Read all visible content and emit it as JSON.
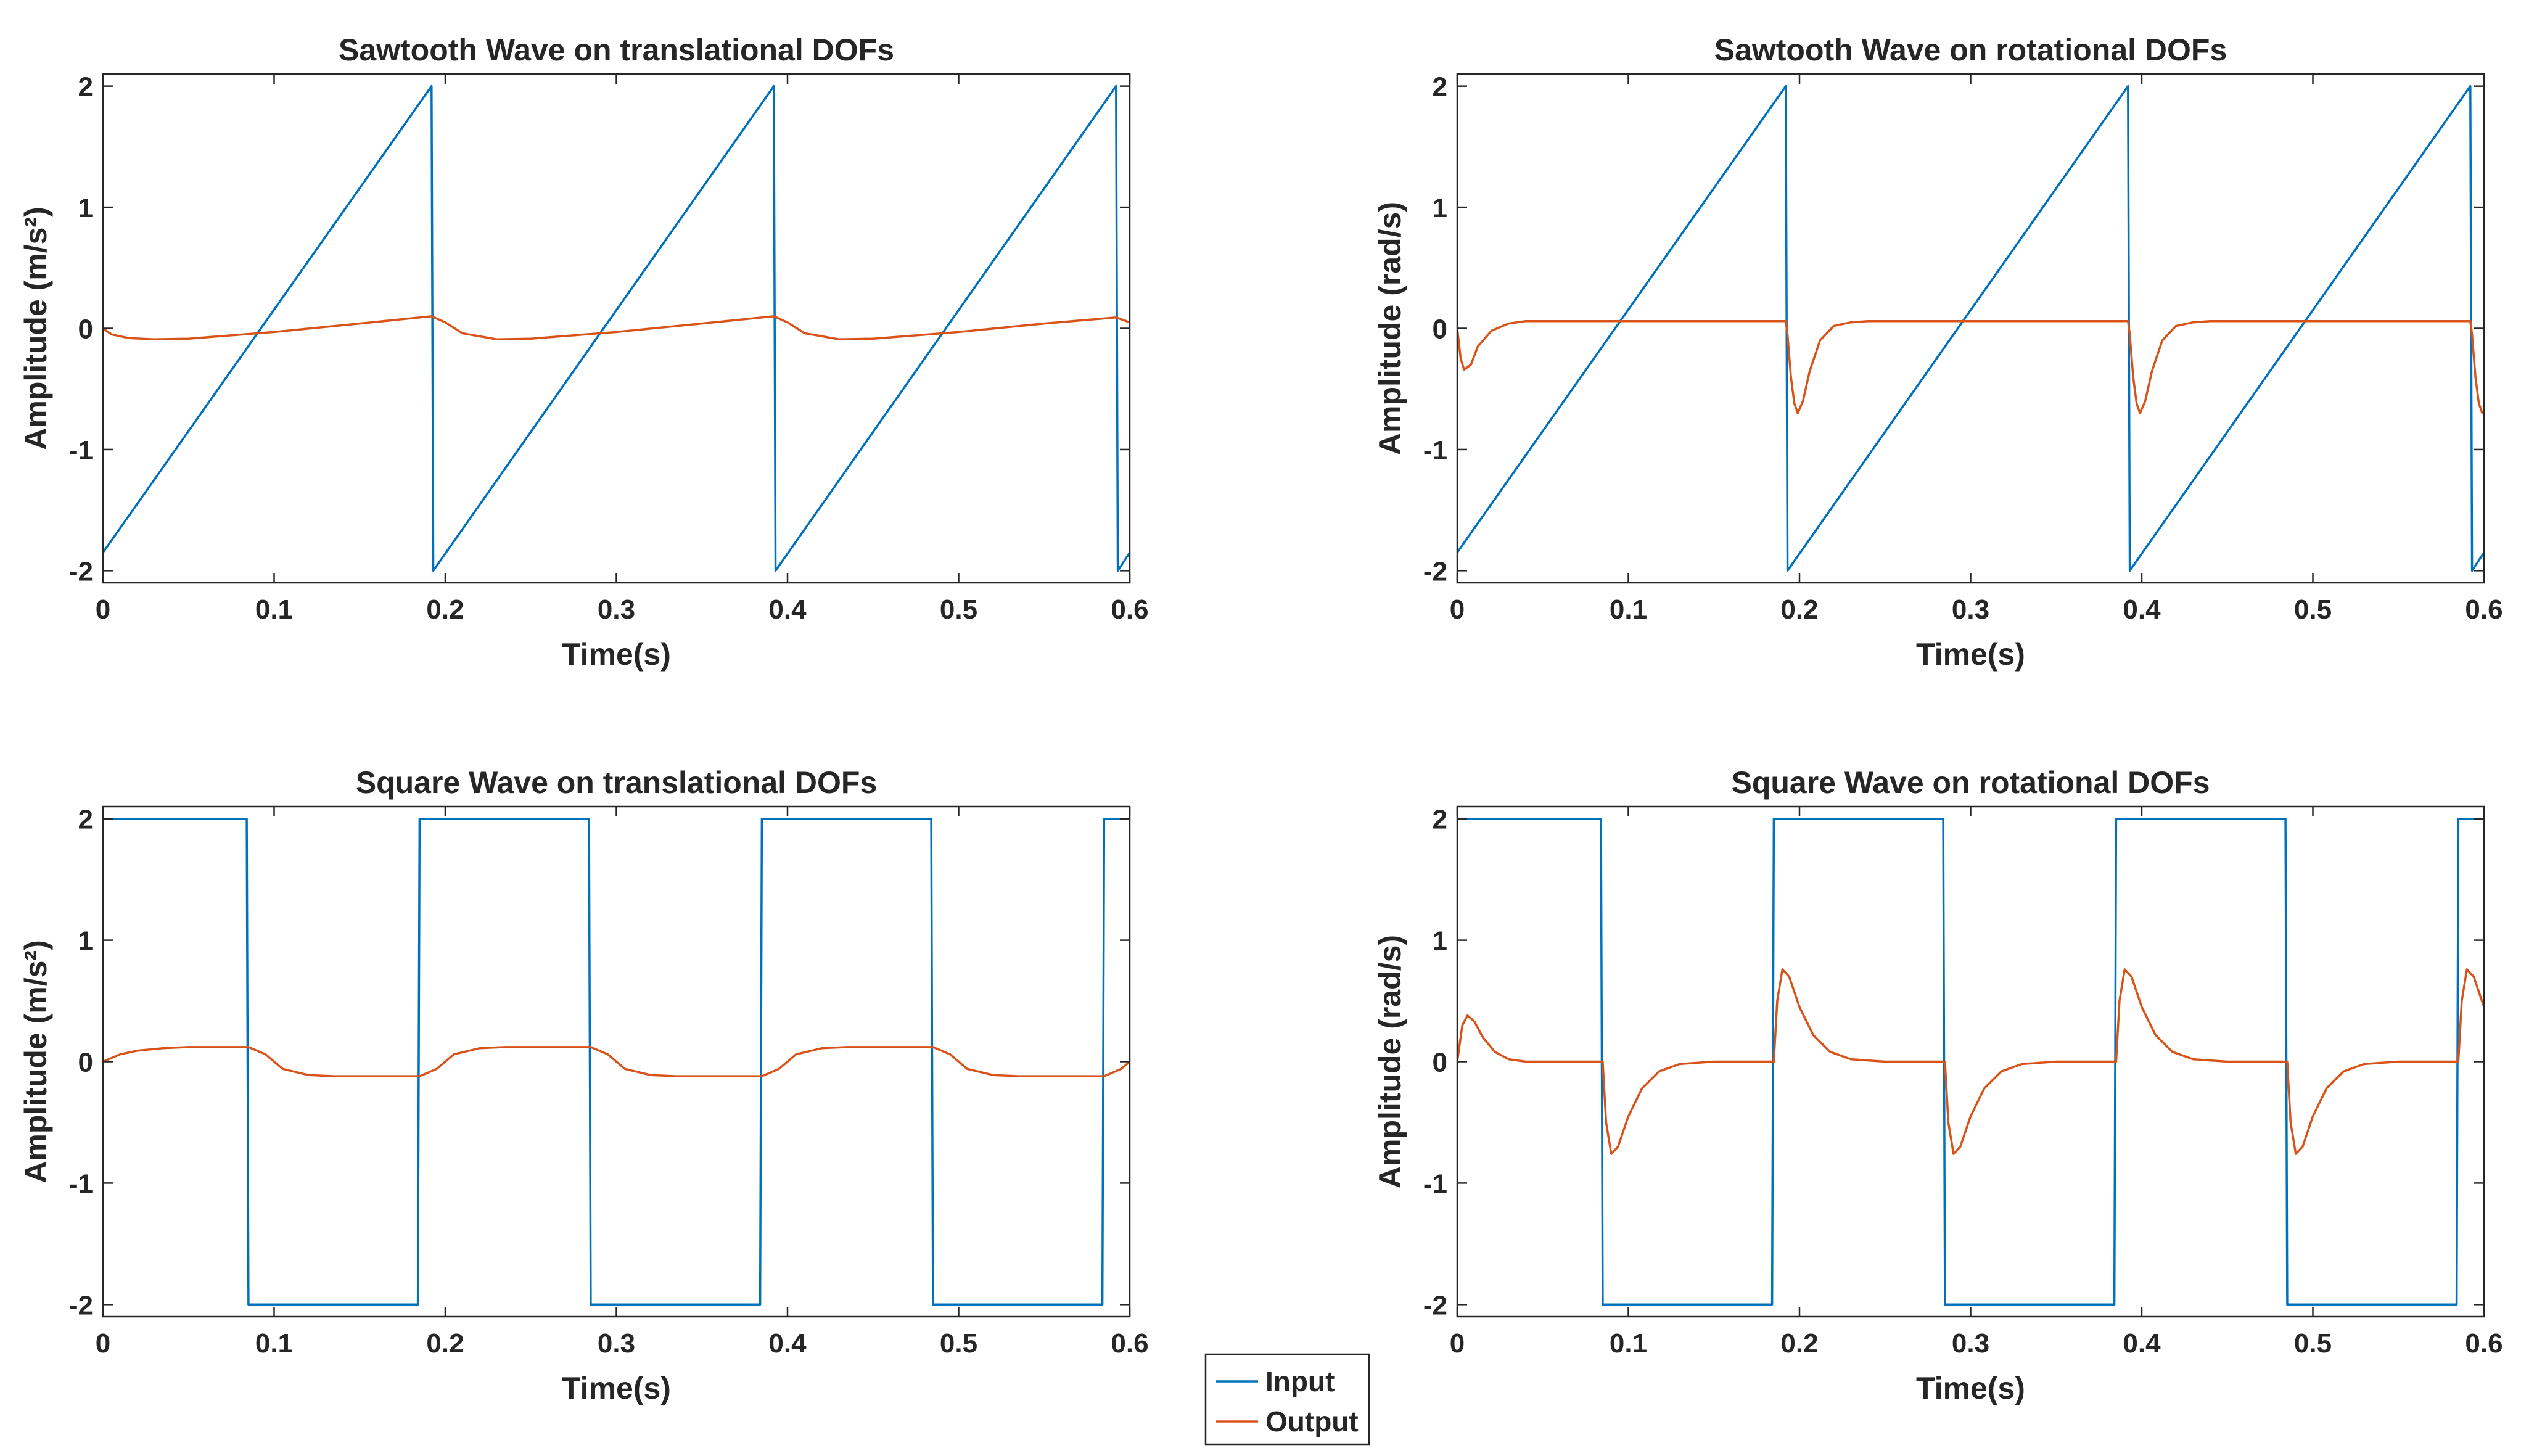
{
  "chart_data": [
    {
      "type": "line",
      "title": "Sawtooth Wave on translational DOFs",
      "xlabel": "Time(s)",
      "ylabel": "Amplitude (m/s²)",
      "xlim": [
        0,
        0.6
      ],
      "ylim": [
        -2.1,
        2.1
      ],
      "xticks": [
        0,
        0.1,
        0.2,
        0.3,
        0.4,
        0.5,
        0.6
      ],
      "xtick_labels": [
        "0",
        "0.1",
        "0.2",
        "0.3",
        "0.4",
        "0.5",
        "0.6"
      ],
      "yticks": [
        -2,
        -1,
        0,
        1,
        2
      ],
      "ytick_labels": [
        "-2",
        "-1",
        "0",
        "1",
        "2"
      ],
      "series": [
        {
          "name": "Input",
          "color": "#0072BD",
          "x": [
            0,
            0.192,
            0.193,
            0.392,
            0.393,
            0.592,
            0.593,
            0.6
          ],
          "y": [
            -1.85,
            2.0,
            -2.0,
            2.0,
            -2.0,
            2.0,
            -2.0,
            -1.85
          ]
        },
        {
          "name": "Output",
          "color": "#D95319",
          "x": [
            0,
            0.005,
            0.015,
            0.03,
            0.05,
            0.1,
            0.15,
            0.192,
            0.2,
            0.21,
            0.23,
            0.25,
            0.3,
            0.35,
            0.392,
            0.4,
            0.41,
            0.43,
            0.45,
            0.5,
            0.55,
            0.592,
            0.6
          ],
          "y": [
            0.0,
            -0.05,
            -0.08,
            -0.09,
            -0.085,
            -0.03,
            0.04,
            0.1,
            0.05,
            -0.04,
            -0.09,
            -0.085,
            -0.03,
            0.04,
            0.1,
            0.05,
            -0.04,
            -0.09,
            -0.085,
            -0.03,
            0.04,
            0.09,
            0.05
          ]
        }
      ]
    },
    {
      "type": "line",
      "title": "Sawtooth Wave on rotational DOFs",
      "xlabel": "Time(s)",
      "ylabel": "Amplitude (rad/s)",
      "xlim": [
        0,
        0.6
      ],
      "ylim": [
        -2.1,
        2.1
      ],
      "xticks": [
        0,
        0.1,
        0.2,
        0.3,
        0.4,
        0.5,
        0.6
      ],
      "xtick_labels": [
        "0",
        "0.1",
        "0.2",
        "0.3",
        "0.4",
        "0.5",
        "0.6"
      ],
      "yticks": [
        -2,
        -1,
        0,
        1,
        2
      ],
      "ytick_labels": [
        "-2",
        "-1",
        "0",
        "1",
        "2"
      ],
      "series": [
        {
          "name": "Input",
          "color": "#0072BD",
          "x": [
            0,
            0.192,
            0.193,
            0.392,
            0.393,
            0.592,
            0.593,
            0.6
          ],
          "y": [
            -1.85,
            2.0,
            -2.0,
            2.0,
            -2.0,
            2.0,
            -2.0,
            -1.85
          ]
        },
        {
          "name": "Output",
          "color": "#D95319",
          "x": [
            0,
            0.002,
            0.004,
            0.008,
            0.012,
            0.02,
            0.03,
            0.04,
            0.192,
            0.193,
            0.195,
            0.197,
            0.199,
            0.202,
            0.206,
            0.212,
            0.22,
            0.23,
            0.24,
            0.392,
            0.393,
            0.395,
            0.397,
            0.399,
            0.402,
            0.406,
            0.412,
            0.42,
            0.43,
            0.44,
            0.592,
            0.593,
            0.595,
            0.597,
            0.599,
            0.6
          ],
          "y": [
            0.0,
            -0.25,
            -0.34,
            -0.3,
            -0.15,
            -0.02,
            0.04,
            0.06,
            0.06,
            -0.05,
            -0.4,
            -0.62,
            -0.7,
            -0.6,
            -0.35,
            -0.1,
            0.02,
            0.05,
            0.06,
            0.06,
            -0.05,
            -0.4,
            -0.62,
            -0.7,
            -0.6,
            -0.35,
            -0.1,
            0.02,
            0.05,
            0.06,
            0.06,
            -0.05,
            -0.4,
            -0.62,
            -0.7,
            -0.68
          ]
        }
      ]
    },
    {
      "type": "line",
      "title": "Square Wave on translational DOFs",
      "xlabel": "Time(s)",
      "ylabel": "Amplitude (m/s²)",
      "xlim": [
        0,
        0.6
      ],
      "ylim": [
        -2.1,
        2.1
      ],
      "xticks": [
        0,
        0.1,
        0.2,
        0.3,
        0.4,
        0.5,
        0.6
      ],
      "xtick_labels": [
        "0",
        "0.1",
        "0.2",
        "0.3",
        "0.4",
        "0.5",
        "0.6"
      ],
      "yticks": [
        -2,
        -1,
        0,
        1,
        2
      ],
      "ytick_labels": [
        "-2",
        "-1",
        "0",
        "1",
        "2"
      ],
      "series": [
        {
          "name": "Input",
          "color": "#0072BD",
          "x": [
            0,
            0.084,
            0.085,
            0.184,
            0.185,
            0.284,
            0.285,
            0.384,
            0.385,
            0.484,
            0.485,
            0.584,
            0.585,
            0.6
          ],
          "y": [
            2,
            2,
            -2,
            -2,
            2,
            2,
            -2,
            -2,
            2,
            2,
            -2,
            -2,
            2,
            2
          ]
        },
        {
          "name": "Output",
          "color": "#D95319",
          "x": [
            0,
            0.01,
            0.02,
            0.035,
            0.05,
            0.085,
            0.095,
            0.105,
            0.12,
            0.135,
            0.185,
            0.195,
            0.205,
            0.22,
            0.235,
            0.285,
            0.295,
            0.305,
            0.32,
            0.335,
            0.385,
            0.395,
            0.405,
            0.42,
            0.435,
            0.485,
            0.495,
            0.505,
            0.52,
            0.535,
            0.585,
            0.595,
            0.6
          ],
          "y": [
            0.0,
            0.06,
            0.09,
            0.11,
            0.12,
            0.12,
            0.06,
            -0.06,
            -0.11,
            -0.12,
            -0.12,
            -0.06,
            0.06,
            0.11,
            0.12,
            0.12,
            0.06,
            -0.06,
            -0.11,
            -0.12,
            -0.12,
            -0.06,
            0.06,
            0.11,
            0.12,
            0.12,
            0.06,
            -0.06,
            -0.11,
            -0.12,
            -0.12,
            -0.06,
            0.0
          ]
        }
      ]
    },
    {
      "type": "line",
      "title": "Square Wave on rotational DOFs",
      "xlabel": "Time(s)",
      "ylabel": "Amplitude (rad/s)",
      "xlim": [
        0,
        0.6
      ],
      "ylim": [
        -2.1,
        2.1
      ],
      "xticks": [
        0,
        0.1,
        0.2,
        0.3,
        0.4,
        0.5,
        0.6
      ],
      "xtick_labels": [
        "0",
        "0.1",
        "0.2",
        "0.3",
        "0.4",
        "0.5",
        "0.6"
      ],
      "yticks": [
        -2,
        -1,
        0,
        1,
        2
      ],
      "ytick_labels": [
        "-2",
        "-1",
        "0",
        "1",
        "2"
      ],
      "series": [
        {
          "name": "Input",
          "color": "#0072BD",
          "x": [
            0,
            0.084,
            0.085,
            0.184,
            0.185,
            0.284,
            0.285,
            0.384,
            0.385,
            0.484,
            0.485,
            0.584,
            0.585,
            0.6
          ],
          "y": [
            2,
            2,
            -2,
            -2,
            2,
            2,
            -2,
            -2,
            2,
            2,
            -2,
            -2,
            2,
            2
          ]
        },
        {
          "name": "Output",
          "color": "#D95319",
          "x": [
            0,
            0.003,
            0.006,
            0.01,
            0.015,
            0.022,
            0.03,
            0.04,
            0.085,
            0.087,
            0.09,
            0.094,
            0.1,
            0.108,
            0.118,
            0.13,
            0.15,
            0.185,
            0.187,
            0.19,
            0.194,
            0.2,
            0.208,
            0.218,
            0.23,
            0.25,
            0.285,
            0.287,
            0.29,
            0.294,
            0.3,
            0.308,
            0.318,
            0.33,
            0.35,
            0.385,
            0.387,
            0.39,
            0.394,
            0.4,
            0.408,
            0.418,
            0.43,
            0.45,
            0.485,
            0.487,
            0.49,
            0.494,
            0.5,
            0.508,
            0.518,
            0.53,
            0.55,
            0.585,
            0.587,
            0.59,
            0.594,
            0.6
          ],
          "y": [
            0.0,
            0.3,
            0.38,
            0.33,
            0.2,
            0.08,
            0.02,
            0.0,
            0.0,
            -0.5,
            -0.76,
            -0.7,
            -0.45,
            -0.22,
            -0.08,
            -0.02,
            0.0,
            0.0,
            0.5,
            0.76,
            0.7,
            0.45,
            0.22,
            0.08,
            0.02,
            0.0,
            0.0,
            -0.5,
            -0.76,
            -0.7,
            -0.45,
            -0.22,
            -0.08,
            -0.02,
            0.0,
            0.0,
            0.5,
            0.76,
            0.7,
            0.45,
            0.22,
            0.08,
            0.02,
            0.0,
            0.0,
            -0.5,
            -0.76,
            -0.7,
            -0.45,
            -0.22,
            -0.08,
            -0.02,
            0.0,
            0.0,
            0.5,
            0.76,
            0.7,
            0.45
          ]
        }
      ]
    }
  ],
  "legend": {
    "placement": "bottom-center",
    "entries": [
      {
        "label": "Input",
        "color": "#0072BD"
      },
      {
        "label": "Output",
        "color": "#D95319"
      }
    ]
  }
}
